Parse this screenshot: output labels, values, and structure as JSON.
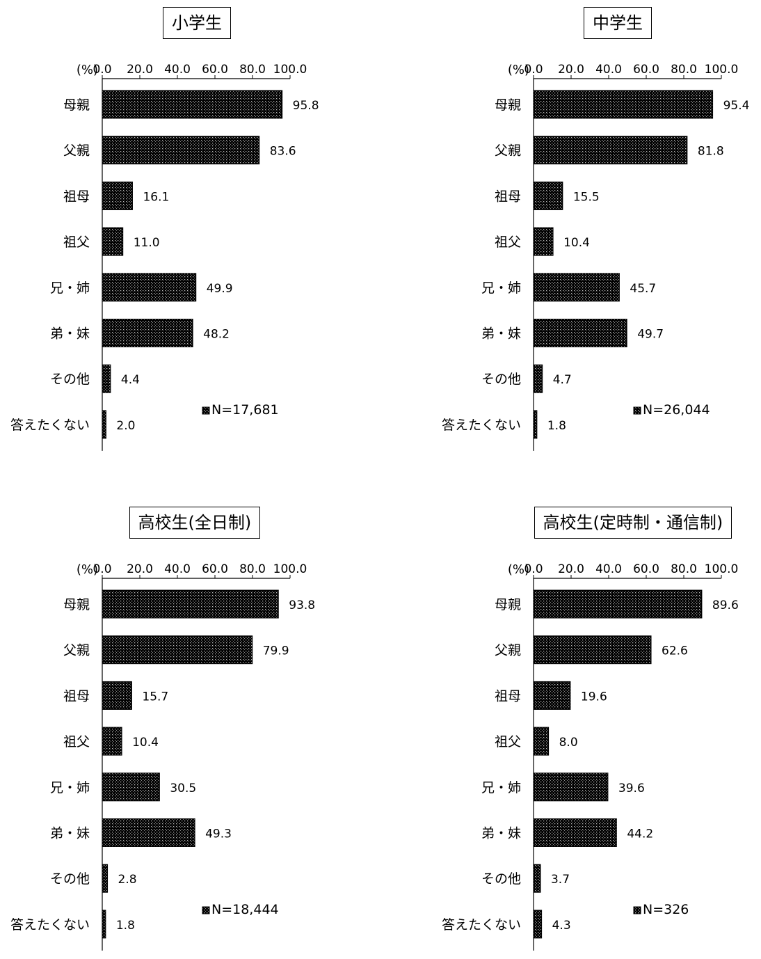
{
  "chart_data": [
    {
      "type": "bar",
      "title": "小学生",
      "unit_label": "(%)",
      "xlim": [
        0,
        100
      ],
      "ticks": [
        "0.0",
        "20.0",
        "40.0",
        "60.0",
        "80.0",
        "100.0"
      ],
      "categories": [
        "母親",
        "父親",
        "祖母",
        "祖父",
        "兄・姉",
        "弟・妹",
        "その他",
        "答えたくない"
      ],
      "values": [
        95.8,
        83.6,
        16.1,
        11.0,
        49.9,
        48.2,
        4.4,
        2.0
      ],
      "value_labels": [
        "95.8",
        "83.6",
        "16.1",
        "11.0",
        "49.9",
        "48.2",
        "4.4",
        "2.0"
      ],
      "legend": "N=17,681"
    },
    {
      "type": "bar",
      "title": "中学生",
      "unit_label": "(%)",
      "xlim": [
        0,
        100
      ],
      "ticks": [
        "0.0",
        "20.0",
        "40.0",
        "60.0",
        "80.0",
        "100.0"
      ],
      "categories": [
        "母親",
        "父親",
        "祖母",
        "祖父",
        "兄・姉",
        "弟・妹",
        "その他",
        "答えたくない"
      ],
      "values": [
        95.4,
        81.8,
        15.5,
        10.4,
        45.7,
        49.7,
        4.7,
        1.8
      ],
      "value_labels": [
        "95.4",
        "81.8",
        "15.5",
        "10.4",
        "45.7",
        "49.7",
        "4.7",
        "1.8"
      ],
      "legend": "N=26,044"
    },
    {
      "type": "bar",
      "title": "高校生(全日制)",
      "unit_label": "(%)",
      "xlim": [
        0,
        100
      ],
      "ticks": [
        "0.0",
        "20.0",
        "40.0",
        "60.0",
        "80.0",
        "100.0"
      ],
      "categories": [
        "母親",
        "父親",
        "祖母",
        "祖父",
        "兄・姉",
        "弟・妹",
        "その他",
        "答えたくない"
      ],
      "values": [
        93.8,
        79.9,
        15.7,
        10.4,
        30.5,
        49.3,
        2.8,
        1.8
      ],
      "value_labels": [
        "93.8",
        "79.9",
        "15.7",
        "10.4",
        "30.5",
        "49.3",
        "2.8",
        "1.8"
      ],
      "legend": "N=18,444"
    },
    {
      "type": "bar",
      "title": "高校生(定時制・通信制)",
      "unit_label": "(%)",
      "xlim": [
        0,
        100
      ],
      "ticks": [
        "0.0",
        "20.0",
        "40.0",
        "60.0",
        "80.0",
        "100.0"
      ],
      "categories": [
        "母親",
        "父親",
        "祖母",
        "祖父",
        "兄・姉",
        "弟・妹",
        "その他",
        "答えたくない"
      ],
      "values": [
        89.6,
        62.6,
        19.6,
        8.0,
        39.6,
        44.2,
        3.7,
        4.3
      ],
      "value_labels": [
        "89.6",
        "62.6",
        "19.6",
        "8.0",
        "39.6",
        "44.2",
        "3.7",
        "4.3"
      ],
      "legend": "N=326"
    }
  ]
}
